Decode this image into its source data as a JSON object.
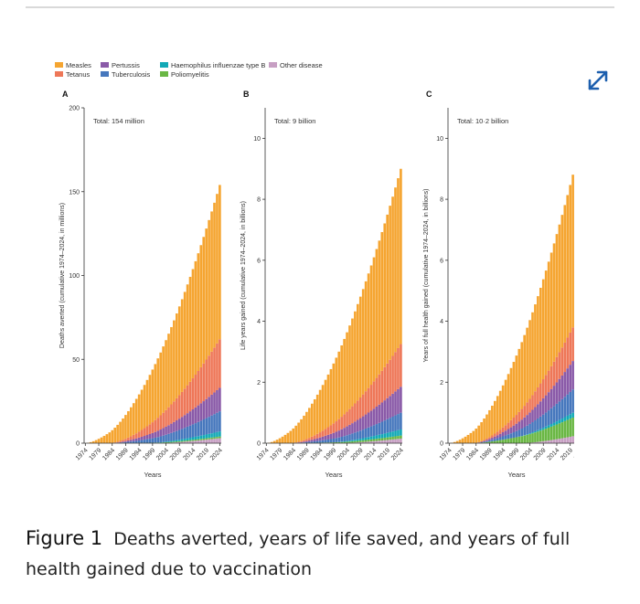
{
  "figure": {
    "label": "Figure 1",
    "title": "Deaths averted, years of life saved, and years of full health gained due to vaccination",
    "expand_icon": "expand-arrows-icon"
  },
  "colors": {
    "Measles": "#f5a531",
    "Tetanus": "#ee7758",
    "Pertussis": "#8a5aa8",
    "Tuberculosis": "#4677bd",
    "Haemophilus influenzae type B": "#12a9b6",
    "Poliomyelitis": "#6ab744",
    "Other disease": "#c79fc3"
  },
  "legend": [
    {
      "name": "Measles",
      "color": "#f5a531"
    },
    {
      "name": "Tetanus",
      "color": "#ee7758"
    },
    {
      "name": "Pertussis",
      "color": "#8a5aa8"
    },
    {
      "name": "Tuberculosis",
      "color": "#4677bd"
    },
    {
      "name": "Haemophilus influenzae type B",
      "color": "#12a9b6"
    },
    {
      "name": "Poliomyelitis",
      "color": "#6ab744"
    },
    {
      "name": "Other disease",
      "color": "#c79fc3"
    }
  ],
  "chart_data": [
    {
      "type": "bar",
      "panel": "A",
      "total_label": "Total: 154 million",
      "xlabel": "Years",
      "ylabel": "Deaths averted (cumulative 1974–2024, in millions)",
      "x_ticks": [
        "1974",
        "1979",
        "1984",
        "1989",
        "1994",
        "1999",
        "2004",
        "2009",
        "2014",
        "2019",
        "2024"
      ],
      "y_ticks": [
        0,
        50,
        100,
        150,
        200
      ],
      "ylim": [
        0,
        200
      ],
      "stacked": true,
      "series_2024": {
        "Other disease": 3,
        "Poliomyelitis": 1,
        "Haemophilus influenzae type B": 3,
        "Tuberculosis": 12,
        "Pertussis": 14,
        "Tetanus": 29,
        "Measles": 92
      },
      "total_2024": 154
    },
    {
      "type": "bar",
      "panel": "B",
      "total_label": "Total: 9 billion",
      "xlabel": "Years",
      "ylabel": "Life years gained (cumulative 1974–2024, in billions)",
      "x_ticks": [
        "1974",
        "1979",
        "1984",
        "1989",
        "1994",
        "1999",
        "2004",
        "2009",
        "2014",
        "2019",
        "2024"
      ],
      "y_ticks": [
        0,
        2,
        4,
        6,
        8,
        10
      ],
      "ylim": [
        0,
        11
      ],
      "stacked": true,
      "series_2024": {
        "Other disease": 0.15,
        "Poliomyelitis": 0.1,
        "Haemophilus influenzae type B": 0.2,
        "Tuberculosis": 0.55,
        "Pertussis": 0.85,
        "Tetanus": 1.4,
        "Measles": 5.75
      },
      "total_2024": 9.0
    },
    {
      "type": "bar",
      "panel": "C",
      "total_label": "Total: 10·2 billion",
      "xlabel": "Years",
      "ylabel": "Years of full health gained (cumulative 1974–2024, in billions)",
      "x_ticks": [
        "1974",
        "1979",
        "1984",
        "1989",
        "1994",
        "1999",
        "2004",
        "2009",
        "2014",
        "2019",
        "2024"
      ],
      "y_ticks": [
        0,
        2,
        4,
        6,
        8,
        10
      ],
      "ylim": [
        0,
        11
      ],
      "stacked": true,
      "series_2024": {
        "Other disease": 0.3,
        "Poliomyelitis": 0.7,
        "Haemophilus influenzae type B": 0.2,
        "Tuberculosis": 0.9,
        "Pertussis": 1.1,
        "Tetanus": 1.3,
        "Measles": 5.7
      },
      "total_2024": 10.2
    }
  ]
}
